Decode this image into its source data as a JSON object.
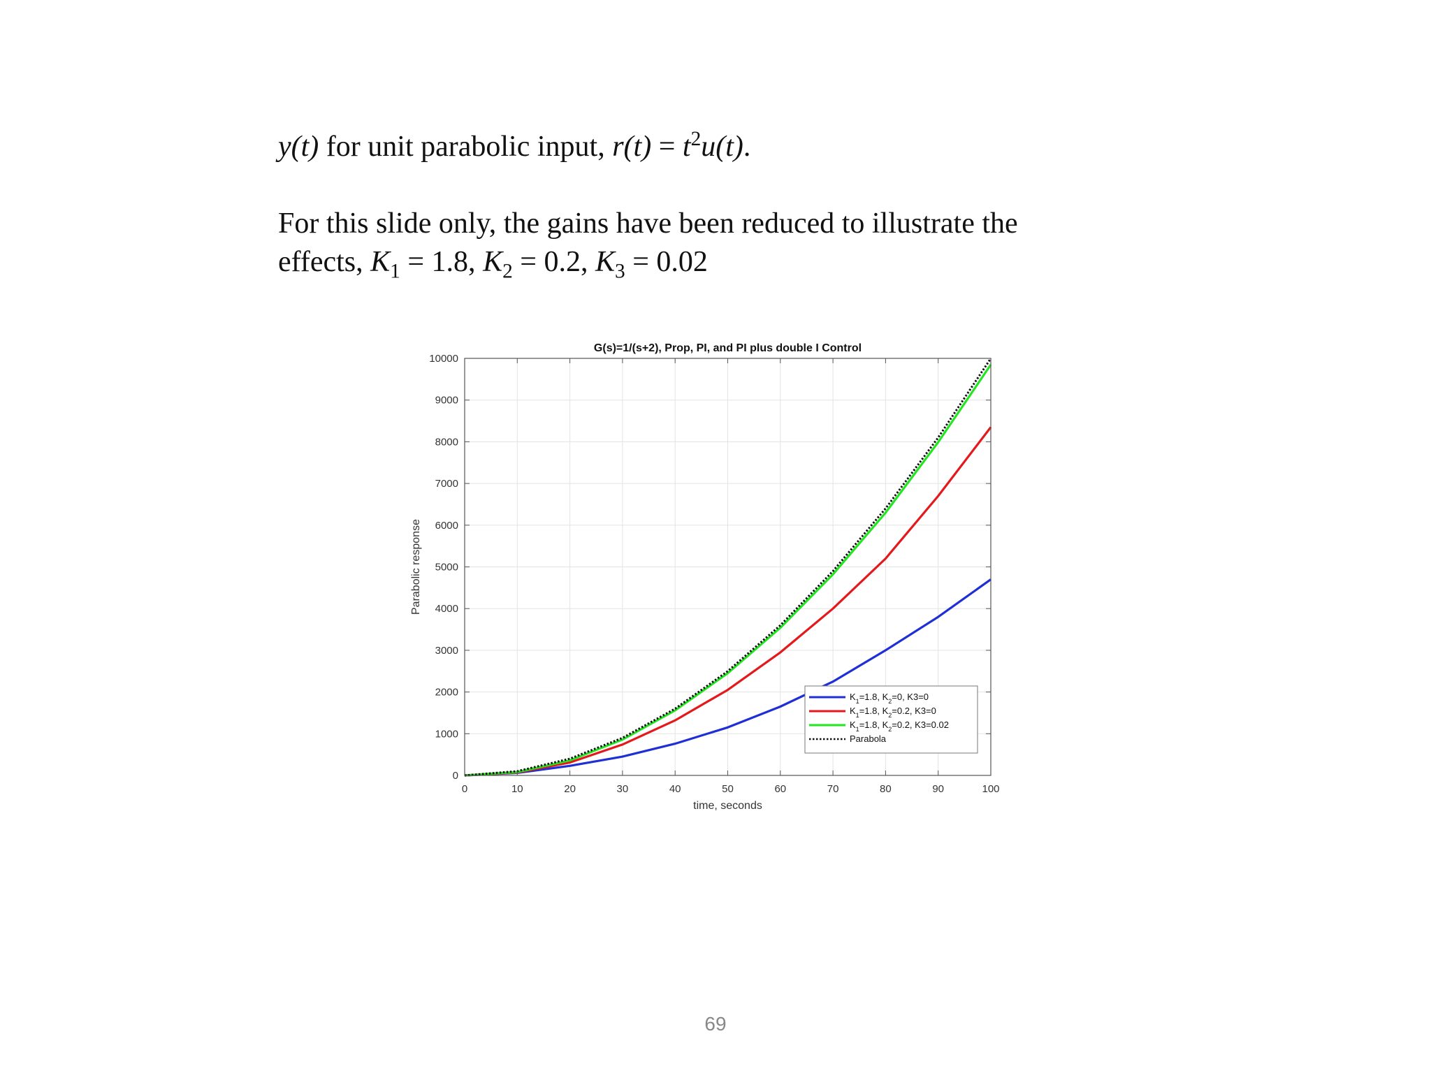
{
  "slide": {
    "line1": {
      "y_of_t": "y(t)",
      "text": " for unit parabolic input, ",
      "r_of_t": "r(t)",
      "equals": " = ",
      "t": "t",
      "t_exp": "2",
      "u_of_t": "u(t)",
      "end": "."
    },
    "line2": "For this slide only, the gains have been reduced to illustrate the",
    "line3": {
      "prefix": "effects, ",
      "k1_sym": "K",
      "k1_sub": "1",
      "k1_val": " = 1.8, ",
      "k2_sym": "K",
      "k2_sub": "2",
      "k2_val": " = 0.2, ",
      "k3_sym": "K",
      "k3_sub": "3",
      "k3_val": " = 0.02"
    },
    "page_number": "69"
  },
  "chart_data": {
    "type": "line",
    "title": "G(s)=1/(s+2), Prop, PI, and PI plus double I Control",
    "xlabel": "time, seconds",
    "ylabel": "Parabolic response",
    "xlim": [
      0,
      100
    ],
    "ylim": [
      0,
      10000
    ],
    "x_ticks": [
      0,
      10,
      20,
      30,
      40,
      50,
      60,
      70,
      80,
      90,
      100
    ],
    "y_ticks": [
      0,
      1000,
      2000,
      3000,
      4000,
      5000,
      6000,
      7000,
      8000,
      9000,
      10000
    ],
    "grid": true,
    "legend_position": "bottom-right",
    "x": [
      0,
      10,
      20,
      30,
      40,
      50,
      60,
      70,
      80,
      90,
      100
    ],
    "series": [
      {
        "name": "K1=1.8, K2=0, K3=0",
        "legend_parts": [
          "K",
          "1",
          "=1.8, K",
          "2",
          "=0, K3=0"
        ],
        "color": "#1f2fd6",
        "style": "solid",
        "values": [
          0,
          60,
          230,
          450,
          760,
          1150,
          1650,
          2250,
          3000,
          3800,
          4700
        ]
      },
      {
        "name": "K1=1.8, K2=0.2, K3=0",
        "legend_parts": [
          "K",
          "1",
          "=1.8, K",
          "2",
          "=0.2, K3=0"
        ],
        "color": "#e3191c",
        "style": "solid",
        "values": [
          0,
          70,
          310,
          740,
          1320,
          2050,
          2950,
          4000,
          5200,
          6700,
          8350
        ]
      },
      {
        "name": "K1=1.8, K2=0.2, K3=0.02",
        "legend_parts": [
          "K",
          "1",
          "=1.8, K",
          "2",
          "=0.2, K3=0.02"
        ],
        "color": "#22e61f",
        "style": "solid",
        "values": [
          0,
          80,
          360,
          860,
          1560,
          2450,
          3540,
          4820,
          6300,
          7990,
          9850
        ]
      },
      {
        "name": "Parabola",
        "legend_parts": [
          "Parabola"
        ],
        "color": "#111111",
        "style": "dotted",
        "values": [
          0,
          100,
          400,
          900,
          1600,
          2500,
          3600,
          4900,
          6400,
          8100,
          10000
        ]
      }
    ]
  }
}
